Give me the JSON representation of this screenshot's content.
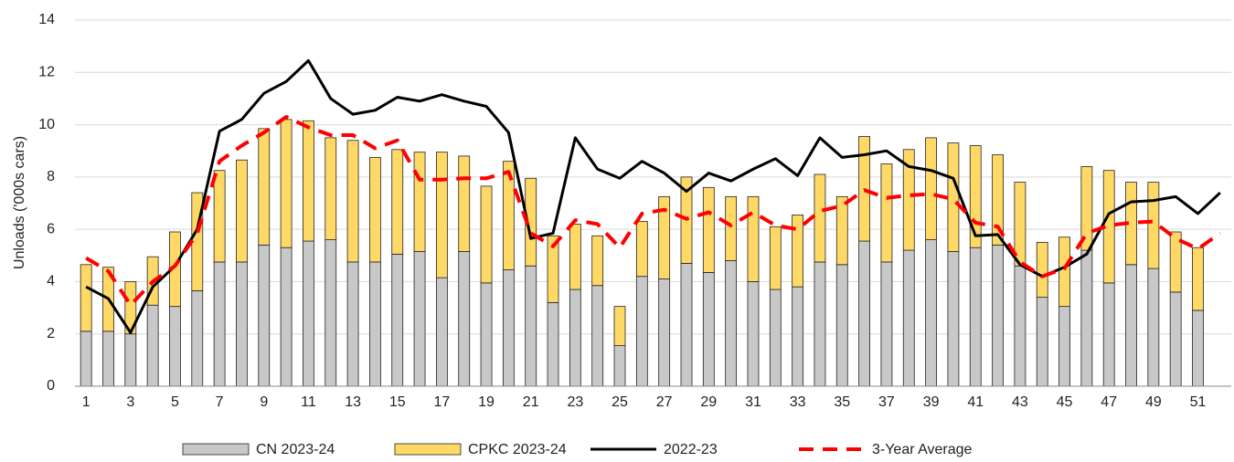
{
  "chart_data": {
    "type": "bar_line",
    "y_label": "Unloads ('000s cars)",
    "categories": [
      1,
      null,
      3,
      null,
      5,
      null,
      7,
      null,
      9,
      null,
      11,
      null,
      13,
      null,
      15,
      null,
      17,
      null,
      19,
      null,
      21,
      null,
      23,
      null,
      25,
      null,
      27,
      null,
      29,
      null,
      31,
      null,
      33,
      null,
      35,
      null,
      37,
      null,
      39,
      null,
      41,
      null,
      43,
      null,
      45,
      null,
      47,
      null,
      49,
      null,
      51,
      null
    ],
    "ylim": [
      0,
      14
    ],
    "yticks": [
      0,
      2,
      4,
      6,
      8,
      10,
      12,
      14
    ],
    "grid": true,
    "legend": "bottom",
    "series": [
      {
        "name": "CN 2023-24",
        "kind": "bar",
        "color": "#c8c8c8",
        "values": [
          2.1,
          2.1,
          2.0,
          3.1,
          3.05,
          3.65,
          4.75,
          4.75,
          5.4,
          5.3,
          5.55,
          5.6,
          4.75,
          4.75,
          5.05,
          5.15,
          4.15,
          5.15,
          3.95,
          4.45,
          4.6,
          3.2,
          3.7,
          3.85,
          1.55,
          4.2,
          4.1,
          4.7,
          4.35,
          4.8,
          4.0,
          3.7,
          3.8,
          4.75,
          4.65,
          5.55,
          4.75,
          5.2,
          5.6,
          5.15,
          5.3,
          5.4,
          4.6,
          3.4,
          3.05,
          5.2,
          3.95,
          4.65,
          4.5,
          3.6,
          2.9,
          null
        ]
      },
      {
        "name": "CPKC 2023-24",
        "kind": "bar",
        "color": "#ffd966",
        "values": [
          2.55,
          2.45,
          2.0,
          1.85,
          2.85,
          3.75,
          3.5,
          3.9,
          4.45,
          4.9,
          4.6,
          3.9,
          4.65,
          4.0,
          4.0,
          3.8,
          4.8,
          3.65,
          3.7,
          4.15,
          3.35,
          2.55,
          2.5,
          1.9,
          1.5,
          2.1,
          3.15,
          3.3,
          3.25,
          2.45,
          3.25,
          2.4,
          2.75,
          3.35,
          2.6,
          4.0,
          3.75,
          3.85,
          3.9,
          4.15,
          3.9,
          3.45,
          3.2,
          2.1,
          2.65,
          3.2,
          4.3,
          3.15,
          3.3,
          2.3,
          2.4,
          null
        ]
      },
      {
        "name": "2022-23",
        "kind": "line",
        "color": "#000000",
        "dash": false,
        "values": [
          3.8,
          3.35,
          2.05,
          3.8,
          4.6,
          6.0,
          9.75,
          10.2,
          11.2,
          11.65,
          12.45,
          11.0,
          10.4,
          10.55,
          11.05,
          10.9,
          11.15,
          10.9,
          10.7,
          9.7,
          5.65,
          5.85,
          9.5,
          8.3,
          7.95,
          8.6,
          8.15,
          7.45,
          8.15,
          7.85,
          8.3,
          8.7,
          8.05,
          9.5,
          8.75,
          8.85,
          9.0,
          8.4,
          8.25,
          7.95,
          5.75,
          5.8,
          4.65,
          4.2,
          4.55,
          5.05,
          6.6,
          7.05,
          7.1,
          7.25,
          6.6,
          7.4
        ]
      },
      {
        "name": "3-Year Average",
        "kind": "line",
        "color": "#ff0000",
        "dash": true,
        "values": [
          4.9,
          4.4,
          3.1,
          4.0,
          4.6,
          5.85,
          8.6,
          9.2,
          9.7,
          10.3,
          9.9,
          9.6,
          9.6,
          9.1,
          9.4,
          7.9,
          7.9,
          7.95,
          7.95,
          8.2,
          5.85,
          5.35,
          6.35,
          6.2,
          5.3,
          6.6,
          6.75,
          6.4,
          6.65,
          6.15,
          6.65,
          6.15,
          6.0,
          6.7,
          6.9,
          7.5,
          7.2,
          7.3,
          7.35,
          7.15,
          6.25,
          6.1,
          4.75,
          4.2,
          4.5,
          5.85,
          6.15,
          6.25,
          6.3,
          5.65,
          5.25,
          5.85
        ]
      }
    ]
  }
}
